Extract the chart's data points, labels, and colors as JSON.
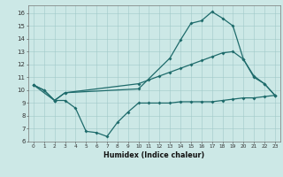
{
  "xlabel": "Humidex (Indice chaleur)",
  "bg_color": "#cce8e6",
  "line_color": "#1e6b6b",
  "xlim": [
    -0.5,
    23.5
  ],
  "ylim": [
    6,
    16.6
  ],
  "yticks": [
    6,
    7,
    8,
    9,
    10,
    11,
    12,
    13,
    14,
    15,
    16
  ],
  "xticks": [
    0,
    1,
    2,
    3,
    4,
    5,
    6,
    7,
    8,
    9,
    10,
    11,
    12,
    13,
    14,
    15,
    16,
    17,
    18,
    19,
    20,
    21,
    22,
    23
  ],
  "line1_x": [
    0,
    1,
    2,
    3,
    4,
    5,
    6,
    7,
    8,
    9,
    10,
    11,
    12,
    13,
    14,
    15,
    16,
    17,
    18,
    19,
    20,
    21,
    22,
    23
  ],
  "line1_y": [
    10.4,
    10.0,
    9.2,
    9.2,
    8.6,
    6.8,
    6.7,
    6.4,
    7.5,
    8.3,
    9.0,
    9.0,
    9.0,
    9.0,
    9.1,
    9.1,
    9.1,
    9.1,
    9.2,
    9.3,
    9.4,
    9.4,
    9.5,
    9.6
  ],
  "line2_x": [
    0,
    1,
    2,
    3,
    10,
    11,
    12,
    13,
    14,
    15,
    16,
    17,
    18,
    19,
    20,
    21,
    22,
    23
  ],
  "line2_y": [
    10.4,
    10.0,
    9.2,
    9.8,
    10.5,
    10.8,
    11.1,
    11.4,
    11.7,
    12.0,
    12.3,
    12.6,
    12.9,
    13.0,
    12.4,
    11.1,
    10.5,
    9.6
  ],
  "line3_x": [
    0,
    2,
    3,
    10,
    13,
    14,
    15,
    16,
    17,
    18,
    19,
    20,
    21,
    22,
    23
  ],
  "line3_y": [
    10.4,
    9.2,
    9.8,
    10.1,
    12.5,
    13.9,
    15.2,
    15.4,
    16.1,
    15.6,
    15.0,
    12.4,
    11.0,
    10.5,
    9.6
  ]
}
